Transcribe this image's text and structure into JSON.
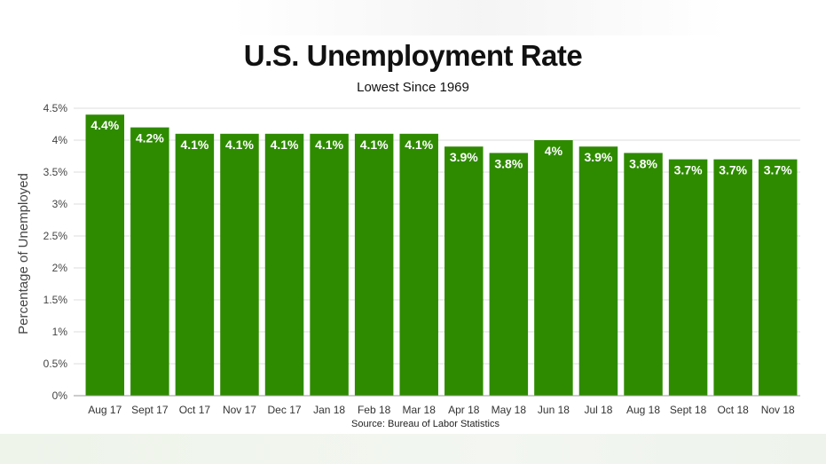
{
  "chart_data": {
    "type": "bar",
    "title": "U.S. Unemployment Rate",
    "subtitle": "Lowest Since 1969",
    "ylabel": "Percentage of Unemployed",
    "source": "Source: Bureau of Labor Statistics",
    "categories": [
      "Aug 17",
      "Sept 17",
      "Oct 17",
      "Nov 17",
      "Dec 17",
      "Jan 18",
      "Feb 18",
      "Mar 18",
      "Apr 18",
      "May 18",
      "Jun 18",
      "Jul 18",
      "Aug 18",
      "Sept 18",
      "Oct 18",
      "Nov 18"
    ],
    "values": [
      4.4,
      4.2,
      4.1,
      4.1,
      4.1,
      4.1,
      4.1,
      4.1,
      3.9,
      3.8,
      4.0,
      3.9,
      3.8,
      3.7,
      3.7,
      3.7
    ],
    "data_labels": [
      "4.4%",
      "4.2%",
      "4.1%",
      "4.1%",
      "4.1%",
      "4.1%",
      "4.1%",
      "4.1%",
      "3.9%",
      "3.8%",
      "4%",
      "3.9%",
      "3.8%",
      "3.7%",
      "3.7%",
      "3.7%"
    ],
    "yticks": [
      0,
      0.5,
      1,
      1.5,
      2,
      2.5,
      3,
      3.5,
      4,
      4.5
    ],
    "ytick_labels": [
      "0%",
      "0.5%",
      "1%",
      "1.5%",
      "2%",
      "2.5%",
      "3%",
      "3.5%",
      "4%",
      "4.5%"
    ],
    "ylim": [
      0,
      4.5
    ],
    "grid": true,
    "bar_color": "#2e8b00"
  }
}
